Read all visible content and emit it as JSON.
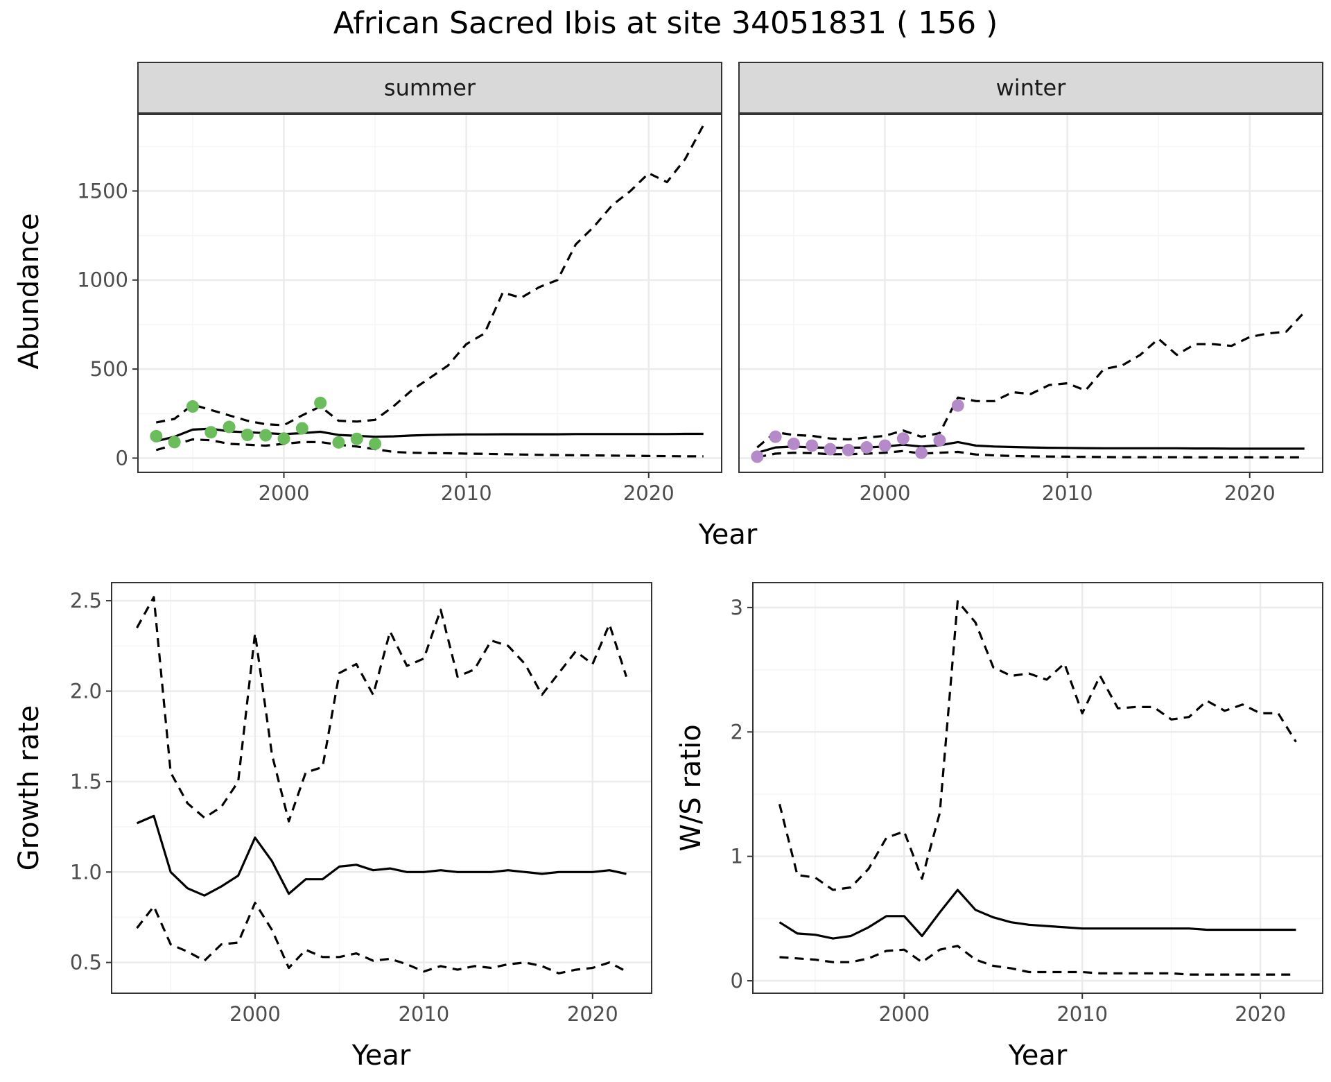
{
  "figure": {
    "title": "African Sacred Ibis at site 34051831 ( 156 )",
    "colors": {
      "summer_points": "#6ABD5A",
      "winter_points": "#B48BC8",
      "line": "#000000",
      "grid_major": "#EBEBEB",
      "grid_minor": "#F5F5F5",
      "strip_fill": "#D9D9D9",
      "panel_border": "#333333"
    }
  },
  "chart_data": [
    {
      "type": "line",
      "panel": "summer",
      "strip_label": "summer",
      "xlabel": "Year",
      "ylabel": "Abundance",
      "xlim": [
        1992,
        2024
      ],
      "ylim": [
        -80,
        1930
      ],
      "xticks": [
        2000,
        2010,
        2020
      ],
      "yticks": [
        0,
        500,
        1000,
        1500
      ],
      "grid": true,
      "x": [
        1993,
        1994,
        1995,
        1996,
        1997,
        1998,
        1999,
        2000,
        2001,
        2002,
        2003,
        2004,
        2005,
        2006,
        2007,
        2008,
        2009,
        2010,
        2011,
        2012,
        2013,
        2014,
        2015,
        2016,
        2017,
        2018,
        2019,
        2020,
        2021,
        2022,
        2023
      ],
      "series": [
        {
          "role": "estimate",
          "style": "solid",
          "values": [
            95,
            120,
            160,
            165,
            150,
            145,
            140,
            135,
            140,
            148,
            130,
            125,
            120,
            122,
            127,
            130,
            132,
            133,
            133,
            134,
            134,
            134,
            134,
            135,
            135,
            135,
            135,
            135,
            135,
            136,
            136
          ]
        },
        {
          "role": "upper",
          "style": "dashed",
          "values": [
            200,
            220,
            300,
            270,
            240,
            210,
            190,
            185,
            240,
            290,
            210,
            205,
            215,
            290,
            380,
            450,
            520,
            640,
            700,
            930,
            900,
            960,
            1000,
            1200,
            1300,
            1420,
            1500,
            1600,
            1550,
            1680,
            1870
          ]
        },
        {
          "role": "lower",
          "style": "dashed",
          "values": [
            45,
            75,
            105,
            100,
            80,
            75,
            70,
            80,
            90,
            90,
            75,
            65,
            50,
            35,
            30,
            28,
            27,
            25,
            24,
            22,
            20,
            18,
            17,
            16,
            15,
            14,
            13,
            12,
            11,
            10,
            10
          ]
        }
      ],
      "points": {
        "x": [
          1993,
          1994,
          1995,
          1996,
          1997,
          1998,
          1999,
          2000,
          2001,
          2002,
          2003,
          2004,
          2005
        ],
        "y": [
          123,
          90,
          290,
          145,
          175,
          130,
          128,
          110,
          167,
          310,
          88,
          108,
          80
        ]
      }
    },
    {
      "type": "line",
      "panel": "winter",
      "strip_label": "winter",
      "xlabel": "Year",
      "ylabel": "Abundance",
      "xlim": [
        1992,
        2024
      ],
      "ylim": [
        -80,
        1930
      ],
      "xticks": [
        2000,
        2010,
        2020
      ],
      "yticks": [
        0,
        500,
        1000,
        1500
      ],
      "grid": true,
      "x": [
        1993,
        1994,
        1995,
        1996,
        1997,
        1998,
        1999,
        2000,
        2001,
        2002,
        2003,
        2004,
        2005,
        2006,
        2007,
        2008,
        2009,
        2010,
        2011,
        2012,
        2013,
        2014,
        2015,
        2016,
        2017,
        2018,
        2019,
        2020,
        2021,
        2022,
        2023
      ],
      "series": [
        {
          "role": "estimate",
          "style": "solid",
          "values": [
            30,
            60,
            65,
            60,
            58,
            58,
            60,
            65,
            75,
            65,
            72,
            90,
            70,
            65,
            62,
            60,
            58,
            57,
            56,
            55,
            55,
            55,
            55,
            55,
            54,
            54,
            53,
            53,
            53,
            53,
            53
          ]
        },
        {
          "role": "upper",
          "style": "dashed",
          "values": [
            60,
            145,
            130,
            125,
            110,
            105,
            115,
            125,
            155,
            120,
            140,
            340,
            320,
            320,
            370,
            360,
            410,
            420,
            380,
            500,
            520,
            580,
            670,
            580,
            640,
            640,
            630,
            680,
            700,
            710,
            820
          ]
        },
        {
          "role": "lower",
          "style": "dashed",
          "values": [
            5,
            25,
            30,
            28,
            22,
            22,
            25,
            30,
            40,
            25,
            30,
            35,
            20,
            15,
            12,
            10,
            9,
            8,
            7,
            6,
            5,
            5,
            5,
            5,
            4,
            4,
            4,
            4,
            4,
            4,
            4
          ]
        }
      ],
      "points": {
        "x": [
          1993,
          1994,
          1995,
          1996,
          1997,
          1998,
          1999,
          2000,
          2001,
          2002,
          2003,
          2004
        ],
        "y": [
          8,
          120,
          80,
          70,
          50,
          45,
          60,
          70,
          110,
          30,
          100,
          295
        ]
      }
    },
    {
      "type": "line",
      "panel": "growth",
      "xlabel": "Year",
      "ylabel": "Growth rate",
      "xlim": [
        1991.5,
        2023.5
      ],
      "ylim": [
        0.33,
        2.6
      ],
      "xticks": [
        2000,
        2010,
        2020
      ],
      "yticks": [
        0.5,
        1.0,
        1.5,
        2.0,
        2.5
      ],
      "ytick_labels": [
        "0.5",
        "1.0",
        "1.5",
        "2.0",
        "2.5"
      ],
      "grid": true,
      "x": [
        1993,
        1994,
        1995,
        1996,
        1997,
        1998,
        1999,
        2000,
        2001,
        2002,
        2003,
        2004,
        2005,
        2006,
        2007,
        2008,
        2009,
        2010,
        2011,
        2012,
        2013,
        2014,
        2015,
        2016,
        2017,
        2018,
        2019,
        2020,
        2021,
        2022
      ],
      "series": [
        {
          "role": "estimate",
          "style": "solid",
          "values": [
            1.27,
            1.31,
            1.0,
            0.91,
            0.87,
            0.92,
            0.98,
            1.19,
            1.06,
            0.88,
            0.96,
            0.96,
            1.03,
            1.04,
            1.01,
            1.02,
            1.0,
            1.0,
            1.01,
            1.0,
            1.0,
            1.0,
            1.01,
            1.0,
            0.99,
            1.0,
            1.0,
            1.0,
            1.01,
            0.99
          ]
        },
        {
          "role": "upper",
          "style": "dashed",
          "values": [
            2.35,
            2.52,
            1.55,
            1.38,
            1.3,
            1.36,
            1.5,
            2.32,
            1.65,
            1.28,
            1.55,
            1.58,
            2.1,
            2.15,
            1.98,
            2.33,
            2.14,
            2.18,
            2.45,
            2.08,
            2.12,
            2.28,
            2.25,
            2.15,
            1.98,
            2.1,
            2.22,
            2.15,
            2.37,
            2.08
          ]
        },
        {
          "role": "lower",
          "style": "dashed",
          "values": [
            0.69,
            0.81,
            0.6,
            0.56,
            0.51,
            0.6,
            0.61,
            0.83,
            0.68,
            0.47,
            0.57,
            0.53,
            0.53,
            0.55,
            0.51,
            0.52,
            0.49,
            0.45,
            0.48,
            0.46,
            0.48,
            0.47,
            0.49,
            0.5,
            0.48,
            0.44,
            0.46,
            0.47,
            0.5,
            0.45
          ]
        }
      ]
    },
    {
      "type": "line",
      "panel": "ratio",
      "xlabel": "Year",
      "ylabel": "W/S ratio",
      "xlim": [
        1991.5,
        2023.5
      ],
      "ylim": [
        -0.1,
        3.2
      ],
      "xticks": [
        2000,
        2010,
        2020
      ],
      "yticks": [
        0,
        1,
        2,
        3
      ],
      "grid": true,
      "x": [
        1993,
        1994,
        1995,
        1996,
        1997,
        1998,
        1999,
        2000,
        2001,
        2002,
        2003,
        2004,
        2005,
        2006,
        2007,
        2008,
        2009,
        2010,
        2011,
        2012,
        2013,
        2014,
        2015,
        2016,
        2017,
        2018,
        2019,
        2020,
        2021,
        2022
      ],
      "series": [
        {
          "role": "estimate",
          "style": "solid",
          "values": [
            0.47,
            0.38,
            0.37,
            0.34,
            0.36,
            0.43,
            0.52,
            0.52,
            0.36,
            0.55,
            0.73,
            0.57,
            0.51,
            0.47,
            0.45,
            0.44,
            0.43,
            0.42,
            0.42,
            0.42,
            0.42,
            0.42,
            0.42,
            0.42,
            0.41,
            0.41,
            0.41,
            0.41,
            0.41,
            0.41
          ]
        },
        {
          "role": "upper",
          "style": "dashed",
          "values": [
            1.42,
            0.85,
            0.83,
            0.73,
            0.75,
            0.9,
            1.15,
            1.2,
            0.82,
            1.35,
            3.05,
            2.88,
            2.52,
            2.45,
            2.47,
            2.42,
            2.55,
            2.15,
            2.45,
            2.19,
            2.2,
            2.2,
            2.1,
            2.12,
            2.25,
            2.17,
            2.22,
            2.15,
            2.15,
            1.92
          ]
        },
        {
          "role": "lower",
          "style": "dashed",
          "values": [
            0.19,
            0.18,
            0.17,
            0.15,
            0.15,
            0.18,
            0.24,
            0.25,
            0.15,
            0.25,
            0.28,
            0.17,
            0.12,
            0.1,
            0.07,
            0.07,
            0.07,
            0.07,
            0.06,
            0.06,
            0.06,
            0.06,
            0.06,
            0.05,
            0.05,
            0.05,
            0.05,
            0.05,
            0.05,
            0.05
          ]
        }
      ]
    }
  ]
}
